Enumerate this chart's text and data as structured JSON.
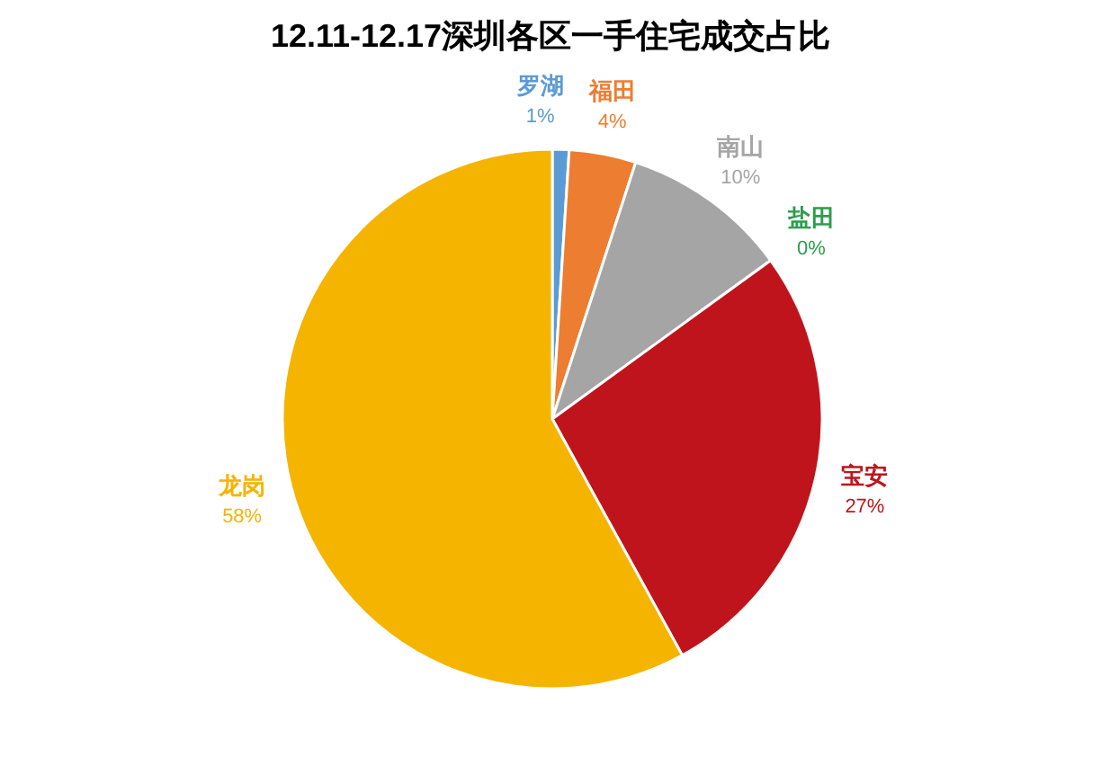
{
  "chart_data": {
    "type": "pie",
    "title": "12.11-12.17深圳各区一手住宅成交占比",
    "categories": [
      "罗湖",
      "福田",
      "南山",
      "盐田",
      "宝安",
      "龙岗"
    ],
    "values": [
      1,
      4,
      10,
      0,
      27,
      58
    ],
    "colors": [
      "#5b9bd5",
      "#ed7d31",
      "#a5a5a5",
      "#2e9c4e",
      "#c0141c",
      "#f5b400"
    ],
    "value_labels": [
      "1%",
      "4%",
      "10%",
      "0%",
      "27%",
      "58%"
    ]
  }
}
